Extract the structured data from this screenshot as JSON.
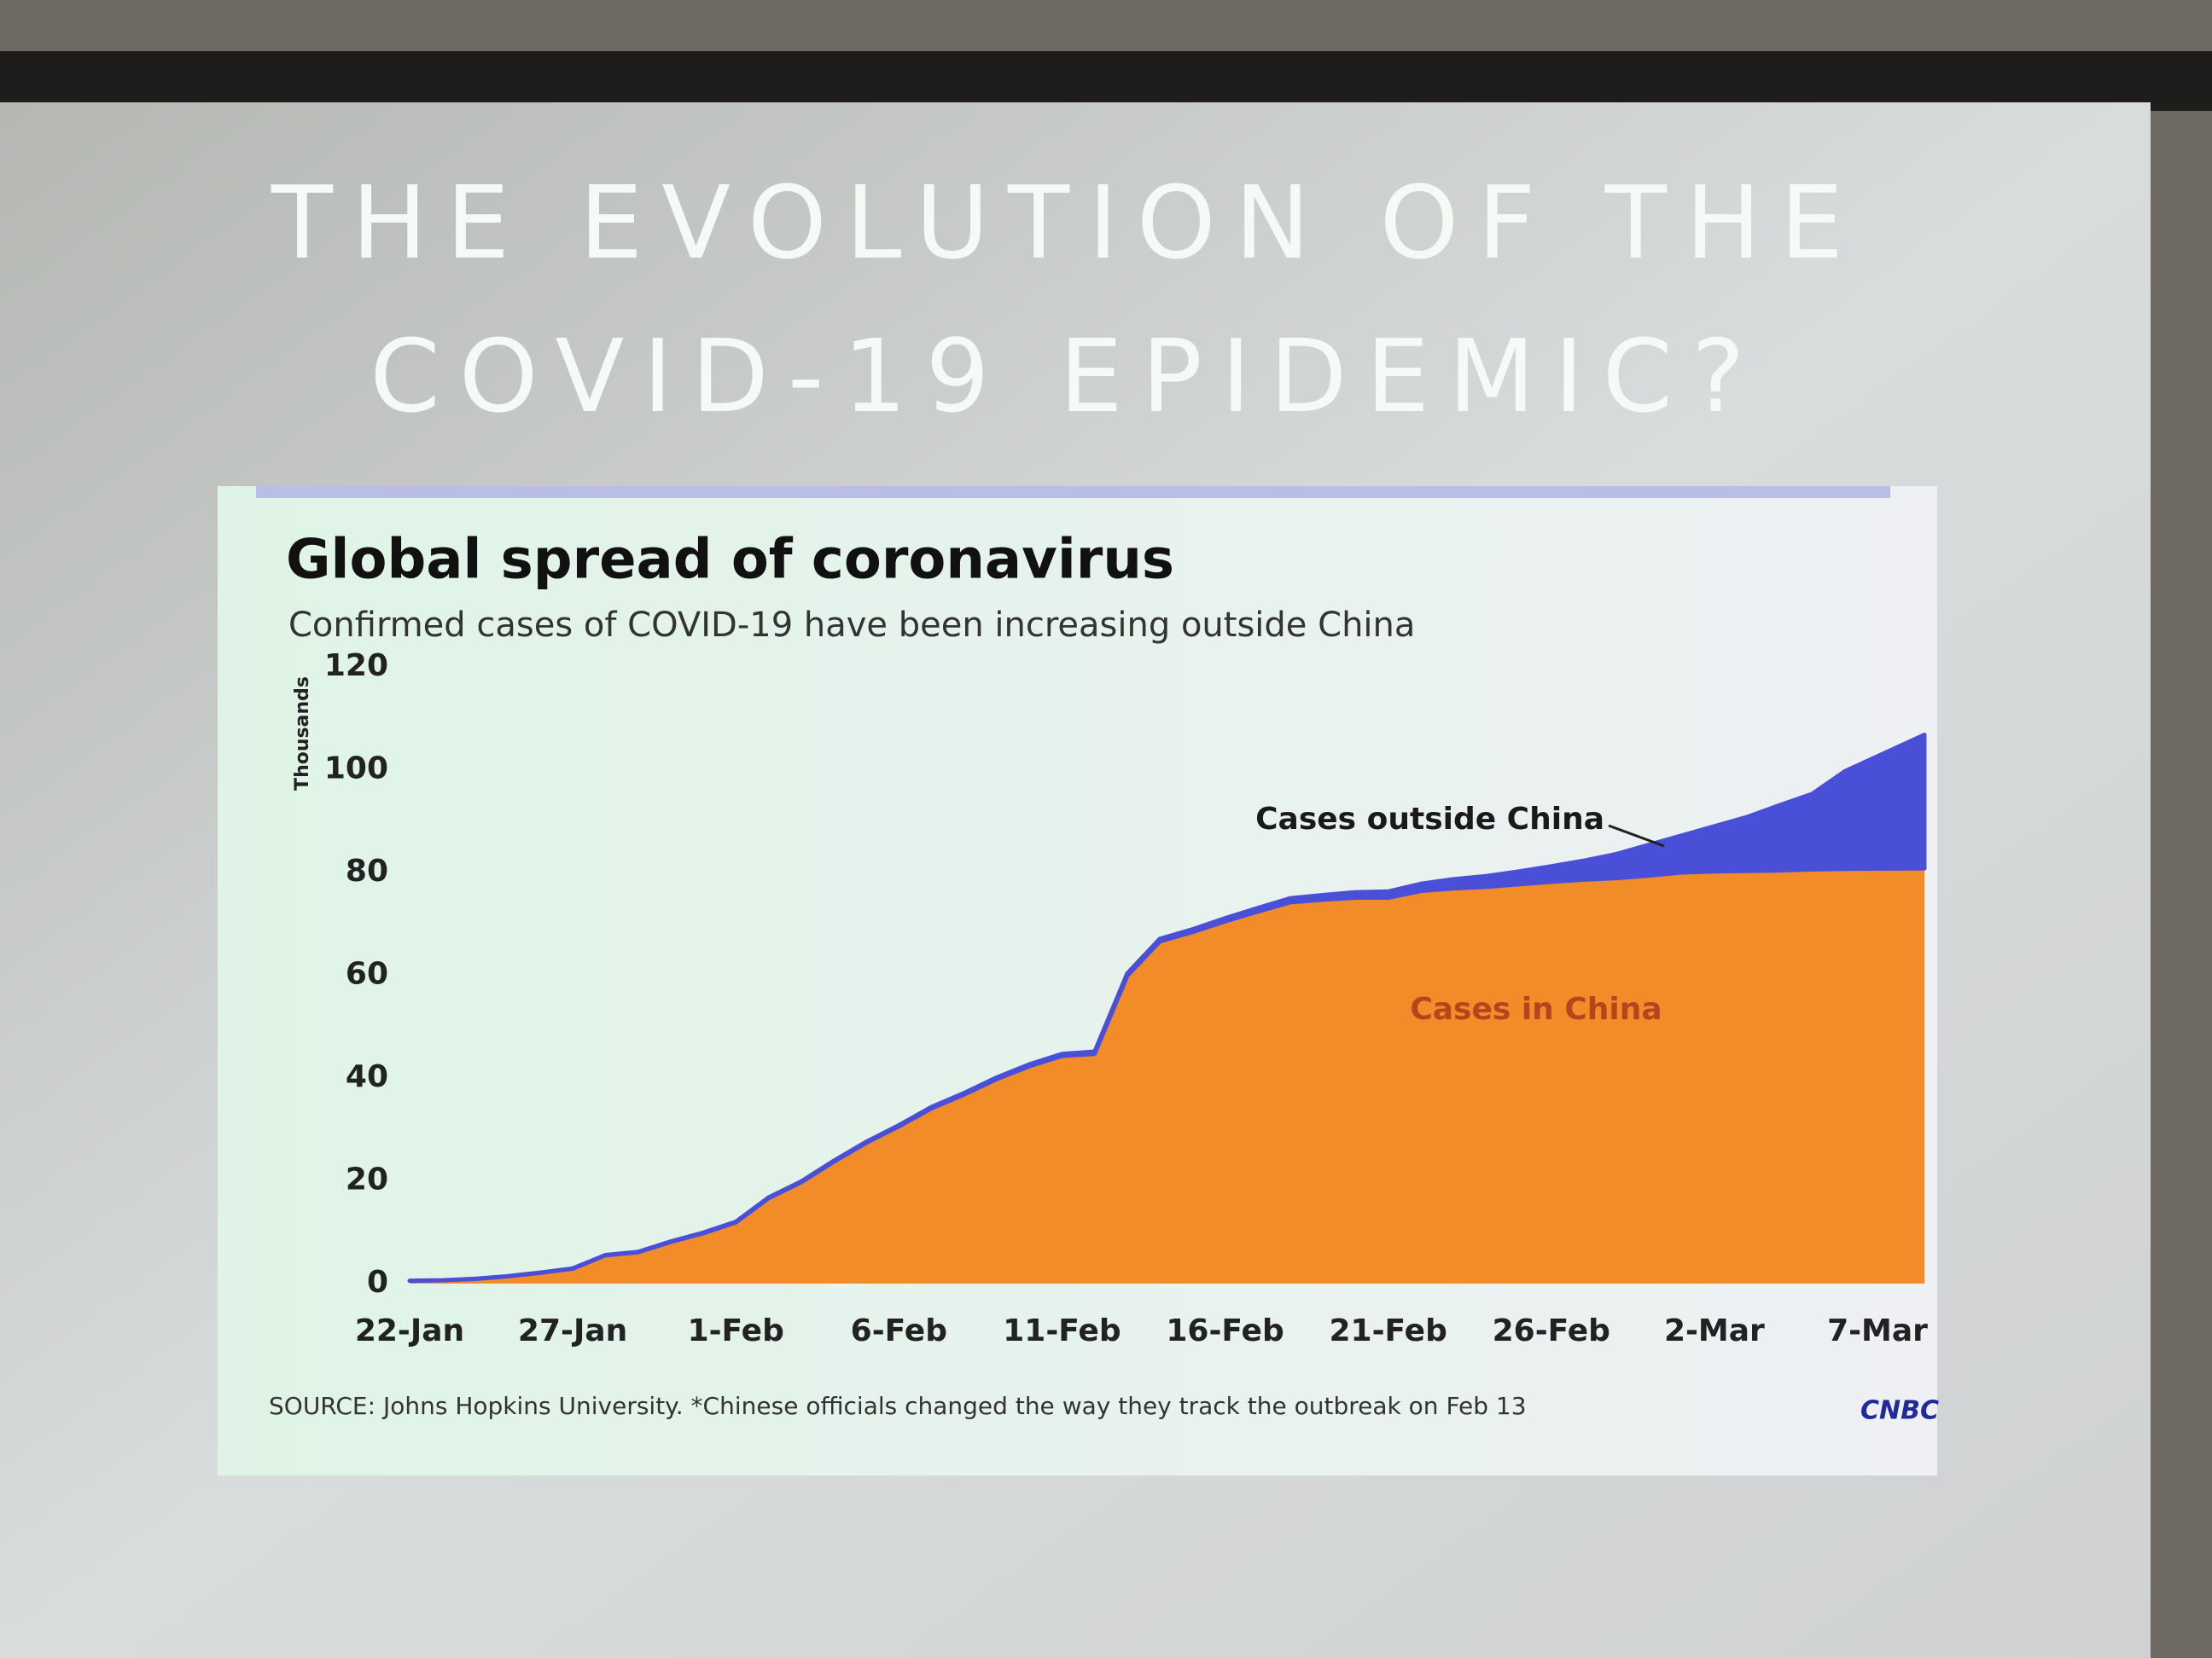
{
  "slide": {
    "title_lines": [
      "THE EVOLUTION OF THE",
      "COVID-19 EPIDEMIC?"
    ]
  },
  "chart_data": {
    "type": "stacked-area",
    "title": "Global spread of coronavirus",
    "subtitle": "Confirmed cases of COVID-19 have been increasing outside China",
    "y_label": "Thousands",
    "categories": [
      "22-Jan",
      null,
      null,
      null,
      null,
      "27-Jan",
      null,
      null,
      null,
      null,
      "1-Feb",
      null,
      null,
      null,
      null,
      "6-Feb",
      null,
      null,
      null,
      null,
      "11-Feb",
      null,
      null,
      null,
      null,
      "16-Feb",
      null,
      null,
      null,
      null,
      "21-Feb",
      null,
      null,
      null,
      null,
      "26-Feb",
      null,
      null,
      null,
      null,
      "2-Mar",
      null,
      null,
      null,
      null,
      "7-Mar"
    ],
    "series": [
      {
        "name": "Cases in China",
        "color": "#f28c28",
        "label_color": "#b8431f",
        "values": [
          0.55,
          0.64,
          0.92,
          1.4,
          2.1,
          2.9,
          5.5,
          6.1,
          8.1,
          9.8,
          11.9,
          16.6,
          19.7,
          23.7,
          27.4,
          30.6,
          34.1,
          36.8,
          39.8,
          42.3,
          44.3,
          44.7,
          59.9,
          66.6,
          68.4,
          70.5,
          72.4,
          74.2,
          74.7,
          75.1,
          75.1,
          76.4,
          76.9,
          77.2,
          77.7,
          78.2,
          78.6,
          78.9,
          79.4,
          80.0,
          80.2,
          80.3,
          80.4,
          80.6,
          80.7,
          80.8
        ]
      },
      {
        "name": "Cases outside China",
        "color": "#4a4fd8",
        "label_color": "#1a1a1a",
        "values": [
          0.01,
          0.01,
          0.02,
          0.03,
          0.04,
          0.05,
          0.06,
          0.07,
          0.09,
          0.11,
          0.13,
          0.15,
          0.16,
          0.18,
          0.2,
          0.22,
          0.27,
          0.29,
          0.32,
          0.37,
          0.39,
          0.44,
          0.45,
          0.5,
          0.53,
          0.6,
          0.69,
          0.79,
          0.9,
          1.07,
          1.2,
          1.4,
          1.8,
          2.1,
          2.5,
          3.0,
          3.7,
          4.7,
          6.0,
          7.2,
          8.8,
          10.5,
          12.7,
          14.7,
          19,
          26
        ]
      }
    ],
    "ylim": [
      0,
      120
    ],
    "yticks": [
      0,
      20,
      40,
      60,
      80,
      100,
      120
    ],
    "grid": false,
    "source": "SOURCE: Johns Hopkins University. *Chinese officials changed the way they track the outbreak on Feb 13",
    "logo": "CNBC"
  }
}
